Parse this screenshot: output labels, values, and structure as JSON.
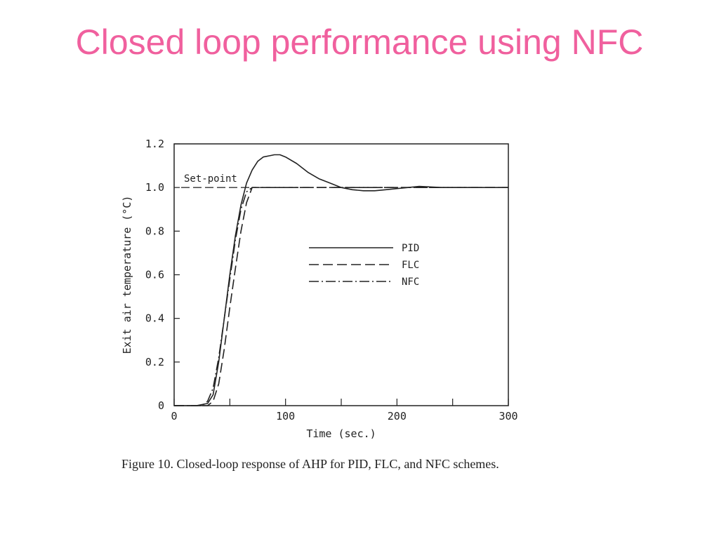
{
  "slide": {
    "title": "Closed loop performance using NFC"
  },
  "figure": {
    "caption": "Figure 10.  Closed-loop response of AHP for PID, FLC, and NFC schemes."
  },
  "chart_data": {
    "type": "line",
    "title": "",
    "xlabel": "Time (sec.)",
    "ylabel": "Exit air temperature (°C)",
    "xlim": [
      0,
      300
    ],
    "ylim": [
      0,
      1.2
    ],
    "x_ticks": [
      "0",
      "100",
      "200",
      "300"
    ],
    "y_ticks": [
      "0",
      "0.2",
      "0.4",
      "0.6",
      "0.8",
      "1.0",
      "1.2"
    ],
    "grid": false,
    "legend_position": "center-right",
    "setpoint": {
      "label": "Set-point",
      "value": 1.0
    },
    "series": [
      {
        "name": "PID",
        "style": "solid",
        "x": [
          0,
          20,
          30,
          35,
          40,
          45,
          50,
          55,
          60,
          65,
          70,
          75,
          80,
          85,
          90,
          95,
          100,
          110,
          120,
          130,
          140,
          150,
          160,
          170,
          180,
          190,
          200,
          210,
          220,
          240,
          260,
          280,
          300
        ],
        "y": [
          0,
          0,
          0.01,
          0.05,
          0.2,
          0.4,
          0.6,
          0.78,
          0.92,
          1.02,
          1.08,
          1.12,
          1.14,
          1.145,
          1.15,
          1.15,
          1.14,
          1.11,
          1.07,
          1.04,
          1.02,
          1.0,
          0.99,
          0.985,
          0.985,
          0.99,
          0.995,
          1.0,
          1.005,
          1.0,
          1.0,
          1.0,
          1.0
        ]
      },
      {
        "name": "FLC",
        "style": "dashed",
        "x": [
          0,
          30,
          35,
          40,
          45,
          50,
          55,
          60,
          65,
          70,
          75,
          80,
          90,
          100,
          150,
          200,
          250,
          300
        ],
        "y": [
          0,
          0,
          0.02,
          0.1,
          0.26,
          0.45,
          0.63,
          0.8,
          0.93,
          1.0,
          1.0,
          1.0,
          1.0,
          1.0,
          1.0,
          1.0,
          1.0,
          1.0
        ]
      },
      {
        "name": "NFC",
        "style": "dash-dot",
        "x": [
          0,
          25,
          30,
          35,
          40,
          45,
          50,
          55,
          60,
          65,
          70,
          75,
          80,
          100,
          150,
          200,
          250,
          300
        ],
        "y": [
          0,
          0,
          0.02,
          0.08,
          0.22,
          0.4,
          0.58,
          0.76,
          0.9,
          0.98,
          1.0,
          1.0,
          1.0,
          1.0,
          1.0,
          1.0,
          1.0,
          1.0
        ]
      }
    ]
  }
}
